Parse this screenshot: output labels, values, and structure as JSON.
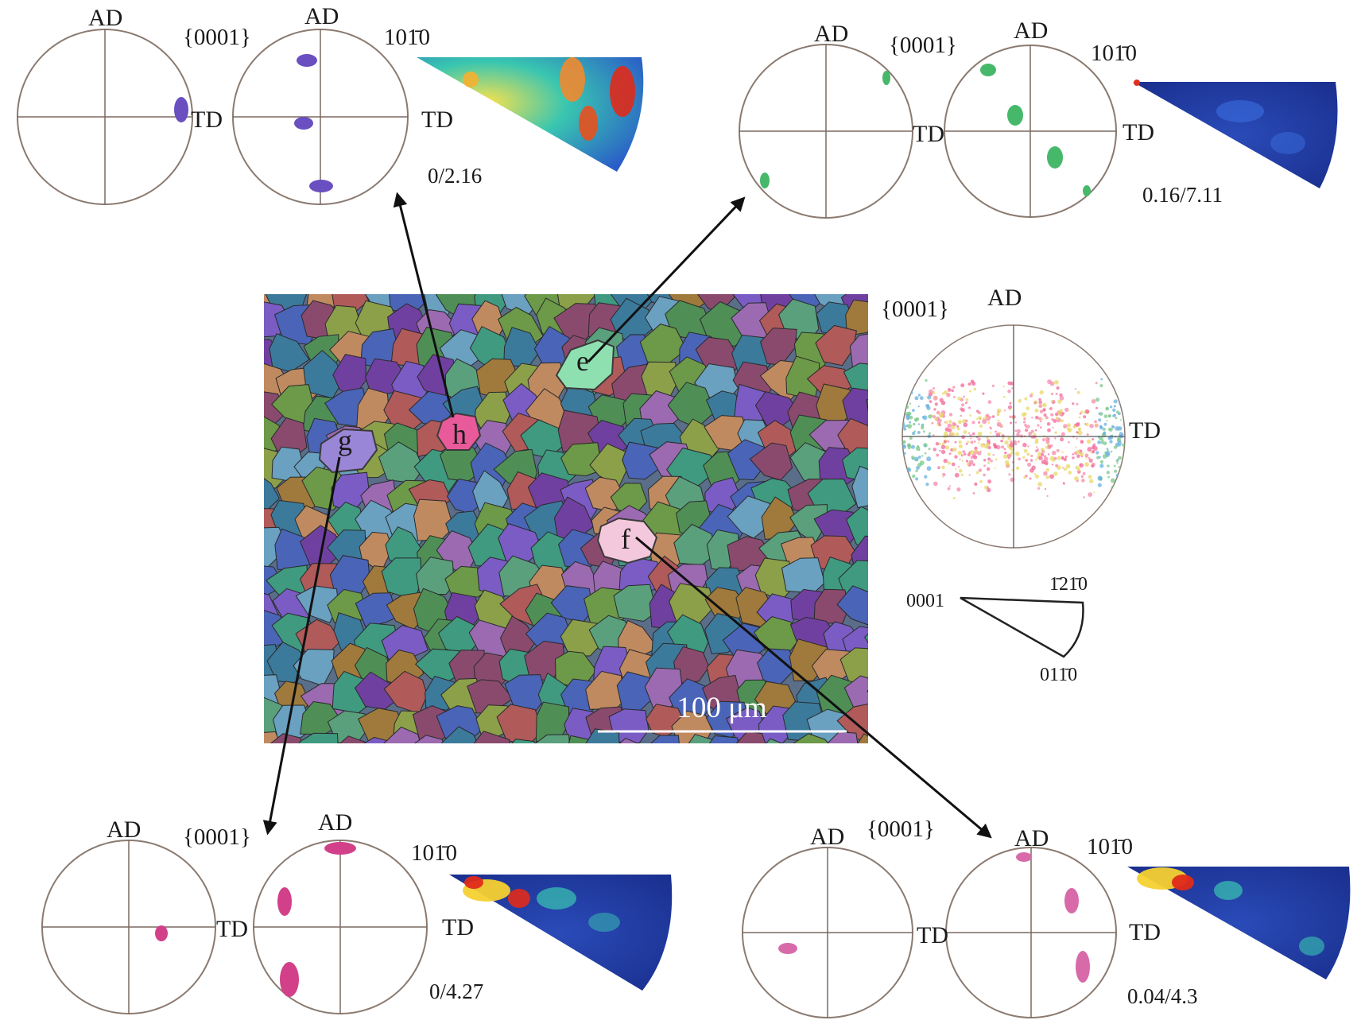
{
  "figure": {
    "map": {
      "scale_bar_label": "100 μm",
      "grain_labels": {
        "e": "e",
        "f": "f",
        "g": "g",
        "h": "h"
      }
    },
    "overall_pole_figure": {
      "family": "{0001}",
      "ad": "AD",
      "td": "TD"
    },
    "ipf_key": {
      "corner_0001": "0001",
      "corner_1210": "1̄21̄0",
      "corner_0110": "011̄0"
    },
    "panels": {
      "h": {
        "grain": "h",
        "ad_left": "AD",
        "ad_right": "AD",
        "family_basal": "{0001}",
        "family_prism": "101̄0",
        "td_left": "TD",
        "td_right": "TD",
        "intensity_range": "0/2.16",
        "dot_color": "#6a4fc0"
      },
      "e": {
        "grain": "e",
        "ad_left": "AD",
        "ad_right": "AD",
        "family_basal": "{0001}",
        "family_prism": "101̄0",
        "td_left": "TD",
        "td_right": "TD",
        "intensity_range": "0.16/7.11",
        "dot_color": "#46b86a"
      },
      "g": {
        "grain": "g",
        "ad_left": "AD",
        "ad_right": "AD",
        "family_basal": "{0001}",
        "family_prism": "101̄0",
        "td_left": "TD",
        "td_right": "TD",
        "intensity_range": "0/4.27",
        "dot_color": "#d2408a"
      },
      "f": {
        "grain": "f",
        "ad_left": "AD",
        "ad_right": "AD",
        "family_basal": "{0001}",
        "family_prism": "101̄0",
        "td_left": "TD",
        "td_right": "TD",
        "intensity_range": "0.04/4.3",
        "dot_color": "#d86aaa"
      }
    },
    "colors": {
      "arrow": "#111111",
      "circle": "#8a7a70",
      "grain_e": "#8fe0b0",
      "grain_f": "#f4c8dc",
      "grain_g": "#9a86d6",
      "grain_h": "#e85a9a"
    }
  }
}
